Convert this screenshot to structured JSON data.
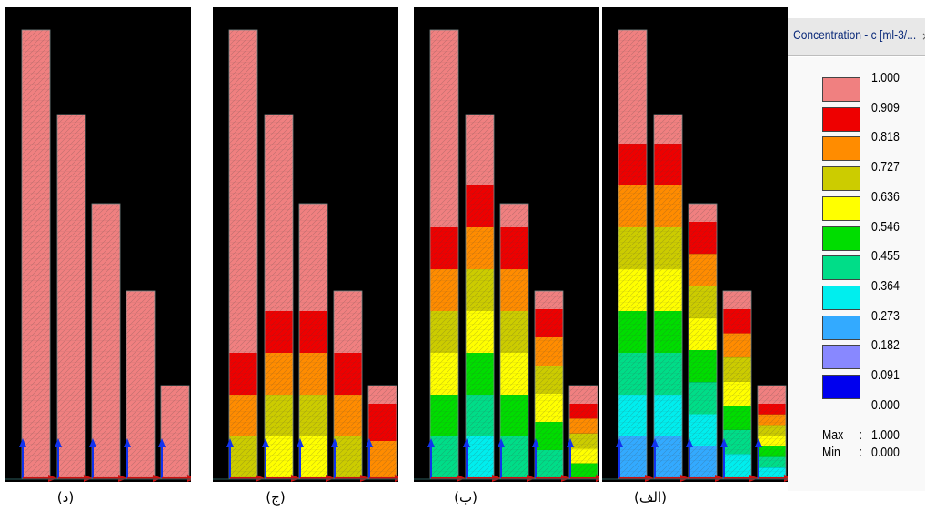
{
  "legend": {
    "title": "Concentration - c [ml-3/...",
    "close_glyph": "×",
    "colors": [
      "#f08080",
      "#ee0000",
      "#ff8c00",
      "#cccc00",
      "#ffff00",
      "#00dd00",
      "#00dd88",
      "#00eeee",
      "#33aaff",
      "#8888ff",
      "#0000ee"
    ],
    "ticks": [
      "1.000",
      "0.909",
      "0.818",
      "0.727",
      "0.636",
      "0.546",
      "0.455",
      "0.364",
      "0.273",
      "0.182",
      "0.091",
      "0.000"
    ],
    "max_label": "Max",
    "max_value": "1.000",
    "min_label": "Min",
    "min_value": "0.000"
  },
  "panels": [
    {
      "caption": "(د)",
      "columns": [
        [
          10
        ],
        [
          10
        ],
        [
          10
        ],
        [
          10
        ],
        [
          10
        ]
      ]
    },
    {
      "caption": "(ج)",
      "columns": [
        [
          10,
          9,
          8,
          7
        ],
        [
          10,
          9,
          8,
          7,
          6
        ],
        [
          10,
          9,
          8,
          7,
          6
        ],
        [
          10,
          9,
          8,
          7
        ],
        [
          10,
          9,
          8
        ]
      ]
    },
    {
      "caption": "(ب)",
      "columns": [
        [
          10,
          9,
          8,
          7,
          6,
          5,
          4
        ],
        [
          10,
          9,
          8,
          7,
          6,
          5,
          4,
          3
        ],
        [
          10,
          9,
          8,
          7,
          6,
          5,
          4
        ],
        [
          10,
          9,
          8,
          7,
          6,
          5,
          4
        ],
        [
          10,
          9,
          8,
          7,
          6,
          5
        ]
      ]
    },
    {
      "caption": "(الف)",
      "columns": [
        [
          10,
          9,
          8,
          7,
          6,
          5,
          4,
          3,
          2
        ],
        [
          10,
          9,
          8,
          7,
          6,
          5,
          4,
          3,
          2
        ],
        [
          10,
          9,
          8,
          7,
          6,
          5,
          4,
          3,
          2
        ],
        [
          10,
          9,
          8,
          7,
          6,
          5,
          4,
          3
        ],
        [
          10,
          9,
          8,
          7,
          6,
          5,
          4,
          3
        ]
      ]
    }
  ],
  "colors": {
    "background": "#000000",
    "column_outline": "#7a8a8a",
    "axis_arrow_x": "#cc1111",
    "axis_arrow_y": "#1133ee"
  }
}
